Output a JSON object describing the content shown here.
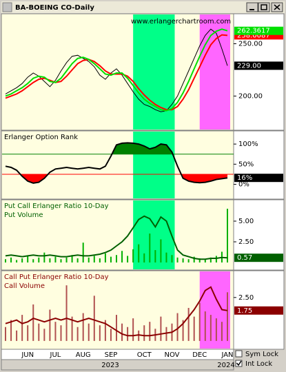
{
  "window_title": "BA-BOEING CO-Daily",
  "checkboxes": [
    "Sym Lock",
    "Int Lock"
  ],
  "x_axis": {
    "labels": [
      null,
      null,
      null,
      null,
      "JUN",
      null,
      null,
      null,
      null,
      "JUL",
      null,
      null,
      null,
      null,
      "AUG",
      null,
      null,
      null,
      null,
      "SEP",
      null,
      null,
      null,
      null,
      null,
      "OCT",
      null,
      null,
      null,
      null,
      "NOV",
      null,
      null,
      null,
      null,
      "DEC",
      null,
      null,
      null,
      null,
      "JAN"
    ],
    "years": [
      "2023",
      "2024"
    ]
  },
  "chart_data": [
    {
      "type": "line",
      "annotation": "www.erlangerchartroom.com",
      "ylim": [
        168,
        278
      ],
      "yticks": [
        {
          "value": 250,
          "label": "250.00"
        },
        {
          "value": 200,
          "label": "200.00"
        }
      ],
      "highlights": [
        {
          "from": 23,
          "to": 30,
          "color": "#00ff88"
        },
        {
          "from": 35,
          "to": 40,
          "color": "#ff66ff"
        }
      ],
      "series": [
        {
          "color": "#000000",
          "last_label": "229.00",
          "values": [
            202,
            205,
            208,
            212,
            218,
            222,
            219,
            214,
            209,
            215,
            224,
            232,
            238,
            239,
            236,
            233,
            228,
            220,
            216,
            222,
            226,
            220,
            212,
            204,
            197,
            192,
            190,
            187,
            185,
            186,
            192,
            200,
            212,
            224,
            236,
            248,
            258,
            264,
            260,
            245,
            229
          ]
        },
        {
          "color": "#ff0000",
          "last_label": "258.0087",
          "values": [
            198,
            200,
            202,
            205,
            209,
            213,
            216,
            217,
            215,
            213,
            214,
            219,
            225,
            231,
            234,
            235,
            233,
            229,
            224,
            221,
            221,
            221,
            219,
            214,
            207,
            201,
            196,
            192,
            189,
            187,
            187,
            190,
            197,
            206,
            217,
            228,
            239,
            249,
            255,
            258.5,
            258.0087
          ]
        },
        {
          "color": "#00e000",
          "last_label": "262.3617",
          "values": [
            200,
            202,
            205,
            208,
            212,
            217,
            219,
            218,
            214,
            213,
            217,
            224,
            231,
            236,
            237,
            235,
            231,
            226,
            221,
            220,
            222,
            222,
            217,
            210,
            203,
            197,
            193,
            190,
            187,
            186,
            188,
            194,
            203,
            214,
            226,
            238,
            249,
            258,
            262,
            264,
            262.3617
          ]
        }
      ]
    },
    {
      "type": "line",
      "title": "Erlanger Option Rank",
      "title_color": "#000000",
      "ylim": [
        -35,
        131
      ],
      "yticks": [
        {
          "value": 100,
          "label": "100%"
        },
        {
          "value": 50,
          "label": "50%"
        },
        {
          "value": 0,
          "label": "0%"
        }
      ],
      "upper": 75,
      "upper_color": "#008000",
      "lower": 25,
      "lower_color": "#ff0000",
      "highlights": [
        {
          "from": 23,
          "to": 30,
          "color": "#00ff88"
        }
      ],
      "series": [
        {
          "color": "#000000",
          "last_label": "16%",
          "values": [
            45,
            42,
            35,
            20,
            8,
            3,
            5,
            15,
            30,
            38,
            40,
            42,
            40,
            38,
            40,
            42,
            40,
            38,
            45,
            70,
            98,
            102,
            103,
            102,
            100,
            95,
            88,
            92,
            100,
            98,
            80,
            45,
            15,
            8,
            5,
            4,
            5,
            8,
            12,
            14,
            16
          ]
        }
      ]
    },
    {
      "type": "line",
      "title": "Put Call Erlanger Ratio 10-Day",
      "subtitle": "Put Volume",
      "title_color": "#006000",
      "ylim": [
        -0.83,
        7.5
      ],
      "yticks": [
        {
          "value": 5,
          "label": "5.00"
        },
        {
          "value": 2.5,
          "label": "2.50"
        }
      ],
      "highlights": [
        {
          "from": 23,
          "to": 30,
          "color": "#00ff88"
        }
      ],
      "volume": {
        "color": "#00b000",
        "values": [
          0.4,
          0.6,
          0.3,
          0.5,
          0.8,
          0.4,
          0.6,
          1.2,
          0.5,
          0.7,
          0.4,
          0.6,
          0.9,
          0.5,
          2.4,
          0.6,
          0.8,
          0.5,
          1.1,
          0.7,
          0.9,
          1.4,
          0.8,
          1.6,
          2.2,
          1.1,
          3.5,
          1.5,
          2.8,
          1.2,
          0.9,
          0.6,
          0.5,
          0.4,
          0.7,
          0.5,
          0.4,
          0.6,
          0.8,
          1.3,
          6.5
        ]
      },
      "series": [
        {
          "color": "#006000",
          "last_label": "0.57",
          "values": [
            0.8,
            0.9,
            0.8,
            0.7,
            0.8,
            0.9,
            0.8,
            0.8,
            0.9,
            0.8,
            0.7,
            0.7,
            0.8,
            0.9,
            0.8,
            0.8,
            0.9,
            1.0,
            1.2,
            1.5,
            2.0,
            2.5,
            3.2,
            4.2,
            5.2,
            5.6,
            5.3,
            4.3,
            5.5,
            5.0,
            3.2,
            1.5,
            0.9,
            0.7,
            0.5,
            0.4,
            0.4,
            0.5,
            0.5,
            0.6,
            0.57
          ]
        }
      ]
    },
    {
      "type": "line",
      "title": "Call Put Erlanger Ratio 10-Day",
      "subtitle": "Call Volume",
      "title_color": "#8b0000",
      "ylim": [
        -0.44,
        4.0
      ],
      "yticks": [
        {
          "value": 2.5,
          "label": "2.50"
        }
      ],
      "highlights": [
        {
          "from": 35,
          "to": 40,
          "color": "#ff66ff"
        }
      ],
      "volume": {
        "color": "#b05050",
        "values": [
          0.8,
          1.2,
          0.6,
          1.5,
          0.9,
          2.1,
          1.0,
          0.7,
          1.8,
          1.1,
          0.9,
          3.2,
          1.4,
          0.8,
          1.6,
          1.0,
          2.6,
          0.9,
          1.2,
          0.7,
          1.5,
          1.0,
          0.8,
          1.3,
          0.6,
          0.9,
          1.1,
          0.7,
          1.4,
          0.8,
          1.0,
          1.6,
          1.2,
          1.9,
          1.4,
          2.2,
          1.7,
          1.5,
          1.3,
          1.1,
          2.8
        ]
      },
      "series": [
        {
          "color": "#8b0000",
          "last_label": "1.75",
          "values": [
            1.0,
            1.1,
            1.2,
            1.0,
            1.1,
            1.3,
            1.2,
            1.1,
            1.2,
            1.3,
            1.2,
            1.3,
            1.2,
            1.1,
            1.2,
            1.3,
            1.2,
            1.1,
            1.0,
            0.8,
            0.6,
            0.4,
            0.3,
            0.3,
            0.35,
            0.3,
            0.3,
            0.35,
            0.4,
            0.45,
            0.5,
            0.7,
            1.0,
            1.4,
            1.8,
            2.3,
            2.9,
            3.1,
            2.4,
            1.8,
            1.75
          ]
        }
      ]
    }
  ]
}
